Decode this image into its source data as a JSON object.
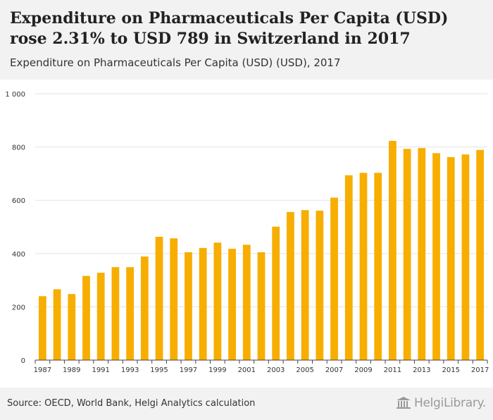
{
  "header": {
    "title": "Expenditure on Pharmaceuticals Per Capita (USD) rose 2.31% to USD 789 in Switzerland in 2017",
    "subtitle": "Expenditure on Pharmaceuticals Per Capita (USD) (USD), 2017"
  },
  "footer": {
    "source": "Source: OECD, World Bank, Helgi Analytics calculation",
    "logo_text": "HelgiLibrary."
  },
  "colors": {
    "bar": "#f7ae00",
    "grid": "#e3e3e3",
    "axis": "#444444",
    "header_bg": "#f2f2f2"
  },
  "chart_data": {
    "type": "bar",
    "title": "Expenditure on Pharmaceuticals Per Capita (USD) (USD), 2017",
    "xlabel": "",
    "ylabel": "",
    "ylim": [
      0,
      1000
    ],
    "yticks": [
      0,
      200,
      400,
      600,
      800,
      1000
    ],
    "ytick_labels": [
      "0",
      "200",
      "400",
      "600",
      "800",
      "1 000"
    ],
    "grid": true,
    "categories": [
      "1987",
      "1988",
      "1989",
      "1990",
      "1991",
      "1992",
      "1993",
      "1994",
      "1995",
      "1996",
      "1997",
      "1998",
      "1999",
      "2000",
      "2001",
      "2002",
      "2003",
      "2004",
      "2005",
      "2006",
      "2007",
      "2008",
      "2009",
      "2010",
      "2011",
      "2012",
      "2013",
      "2014",
      "2015",
      "2016",
      "2017"
    ],
    "xtick_labels": [
      "1987",
      "1989",
      "1991",
      "1993",
      "1995",
      "1997",
      "1999",
      "2001",
      "2003",
      "2005",
      "2007",
      "2009",
      "2011",
      "2013",
      "2015",
      "2017"
    ],
    "values": [
      240,
      266,
      248,
      316,
      328,
      349,
      349,
      389,
      463,
      457,
      405,
      421,
      441,
      418,
      433,
      405,
      501,
      556,
      563,
      561,
      610,
      694,
      703,
      703,
      823,
      793,
      796,
      777,
      762,
      772,
      789
    ]
  }
}
